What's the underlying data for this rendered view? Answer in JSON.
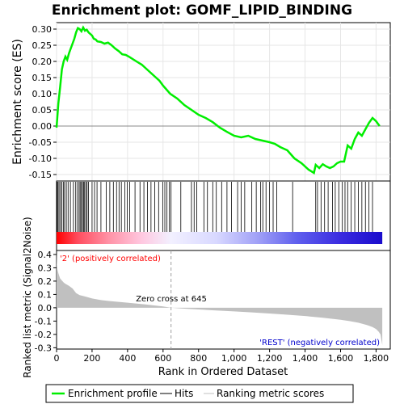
{
  "title": "Enrichment plot: GOMF_LIPID_BINDING",
  "colors": {
    "es_line": "#00ee00",
    "hit_line": "#000000",
    "metric_fill": "#c0c0c0",
    "zero_cross_line": "#a0a0a0",
    "pos_label": "#ff0000",
    "neg_label": "#0000cc"
  },
  "legend": {
    "items": [
      {
        "label": "Enrichment profile",
        "color": "#00ee00",
        "kind": "thick-line"
      },
      {
        "label": "Hits",
        "color": "#000000",
        "kind": "line"
      },
      {
        "label": "Ranking metric scores",
        "color": "#c0c0c0",
        "kind": "line"
      }
    ]
  },
  "chart_data": [
    {
      "type": "line",
      "name": "enrichment-profile",
      "ylabel": "Enrichment score (ES)",
      "xlim": [
        0,
        1880
      ],
      "ylim": [
        -0.17,
        0.32
      ],
      "yticks": [
        -0.15,
        -0.1,
        -0.05,
        0.0,
        0.05,
        0.1,
        0.15,
        0.2,
        0.25,
        0.3
      ],
      "ytick_labels": [
        "-0.15",
        "-0.10",
        "-0.05",
        "0.00",
        "0.05",
        "0.10",
        "0.15",
        "0.20",
        "0.25",
        "0.30"
      ],
      "grid": true,
      "x": [
        0,
        10,
        20,
        30,
        40,
        50,
        60,
        70,
        80,
        100,
        110,
        120,
        130,
        140,
        150,
        160,
        170,
        180,
        200,
        210,
        220,
        230,
        250,
        270,
        290,
        310,
        330,
        350,
        370,
        390,
        410,
        450,
        480,
        500,
        520,
        540,
        560,
        580,
        600,
        640,
        680,
        720,
        760,
        800,
        840,
        880,
        920,
        960,
        1000,
        1040,
        1080,
        1120,
        1160,
        1200,
        1230,
        1260,
        1300,
        1340,
        1380,
        1420,
        1450,
        1460,
        1480,
        1500,
        1520,
        1540,
        1560,
        1580,
        1600,
        1620,
        1640,
        1660,
        1680,
        1700,
        1720,
        1740,
        1760,
        1780,
        1800,
        1820
      ],
      "values": [
        -0.005,
        0.07,
        0.12,
        0.175,
        0.2,
        0.215,
        0.205,
        0.225,
        0.24,
        0.27,
        0.29,
        0.303,
        0.3,
        0.293,
        0.305,
        0.295,
        0.298,
        0.29,
        0.28,
        0.27,
        0.268,
        0.262,
        0.26,
        0.255,
        0.258,
        0.25,
        0.24,
        0.232,
        0.222,
        0.22,
        0.214,
        0.2,
        0.19,
        0.18,
        0.17,
        0.16,
        0.15,
        0.14,
        0.125,
        0.1,
        0.085,
        0.065,
        0.05,
        0.035,
        0.025,
        0.012,
        -0.005,
        -0.018,
        -0.03,
        -0.035,
        -0.03,
        -0.04,
        -0.045,
        -0.05,
        -0.055,
        -0.065,
        -0.075,
        -0.1,
        -0.115,
        -0.135,
        -0.145,
        -0.12,
        -0.13,
        -0.118,
        -0.125,
        -0.13,
        -0.125,
        -0.115,
        -0.11,
        -0.11,
        -0.06,
        -0.07,
        -0.04,
        -0.02,
        -0.03,
        -0.01,
        0.01,
        0.025,
        0.015,
        0.0
      ]
    },
    {
      "type": "scatter",
      "name": "hits",
      "x": [
        3,
        8,
        14,
        22,
        29,
        38,
        45,
        55,
        65,
        78,
        95,
        108,
        118,
        127,
        133,
        140,
        146,
        152,
        158,
        165,
        172,
        180,
        200,
        214,
        228,
        250,
        280,
        300,
        320,
        338,
        352,
        365,
        385,
        398,
        412,
        442,
        470,
        492,
        512,
        532,
        553,
        575,
        598,
        610,
        622,
        636,
        645,
        700,
        760,
        775,
        790,
        830,
        850,
        880,
        900,
        930,
        960,
        985,
        1020,
        1040,
        1060,
        1100,
        1125,
        1150,
        1162,
        1180,
        1200,
        1220,
        1240,
        1330,
        1460,
        1470,
        1490,
        1510,
        1530,
        1555,
        1570,
        1590,
        1610,
        1625,
        1640,
        1660,
        1680,
        1700,
        1720,
        1740,
        1760,
        1780
      ]
    },
    {
      "type": "area",
      "name": "ranked-list-metric",
      "xlabel": "Rank in Ordered Dataset",
      "ylabel": "Ranked list metric (Signal2Noise)",
      "xlim": [
        0,
        1880
      ],
      "ylim": [
        -0.31,
        0.43
      ],
      "xticks": [
        0,
        200,
        400,
        600,
        800,
        1000,
        1200,
        1400,
        1600,
        1800
      ],
      "xtick_labels": [
        "0",
        "200",
        "400",
        "600",
        "800",
        "1,000",
        "1,200",
        "1,400",
        "1,600",
        "1,800"
      ],
      "yticks": [
        -0.3,
        -0.2,
        -0.1,
        0.0,
        0.1,
        0.2,
        0.3,
        0.4
      ],
      "ytick_labels": [
        "-0.3",
        "-0.2",
        "-0.1",
        "0.0",
        "0.1",
        "0.2",
        "0.3",
        "0.4"
      ],
      "grid": false,
      "x": [
        0,
        2,
        5,
        10,
        15,
        20,
        30,
        40,
        50,
        70,
        90,
        110,
        130,
        160,
        200,
        250,
        300,
        400,
        500,
        600,
        645,
        700,
        800,
        900,
        1000,
        1100,
        1200,
        1300,
        1400,
        1500,
        1600,
        1650,
        1700,
        1750,
        1780,
        1800,
        1815,
        1825,
        1830,
        1835
      ],
      "values": [
        0.43,
        0.33,
        0.29,
        0.26,
        0.24,
        0.22,
        0.205,
        0.19,
        0.18,
        0.165,
        0.145,
        0.11,
        0.095,
        0.085,
        0.07,
        0.058,
        0.05,
        0.038,
        0.025,
        0.01,
        0.0,
        -0.005,
        -0.013,
        -0.02,
        -0.027,
        -0.035,
        -0.043,
        -0.052,
        -0.062,
        -0.075,
        -0.09,
        -0.1,
        -0.112,
        -0.13,
        -0.145,
        -0.16,
        -0.18,
        -0.2,
        -0.24,
        -0.28
      ]
    }
  ],
  "annotations": {
    "positive_label": "'2' (positively correlated)",
    "negative_label": "'REST' (negatively correlated)",
    "zero_cross_label": "Zero cross at 645",
    "zero_cross_rank": 645
  },
  "heat_bar": {
    "total_ranks": 1835,
    "stops": [
      {
        "rank": 0,
        "color": "#ff0000"
      },
      {
        "rank": 120,
        "color": "#ff4d5f"
      },
      {
        "rank": 300,
        "color": "#ff94a8"
      },
      {
        "rank": 480,
        "color": "#ffc8e0"
      },
      {
        "rank": 645,
        "color": "#f2f0ff"
      },
      {
        "rank": 900,
        "color": "#d8d8ff"
      },
      {
        "rank": 1150,
        "color": "#9c9cf6"
      },
      {
        "rank": 1350,
        "color": "#6060ee"
      },
      {
        "rank": 1600,
        "color": "#3a2be0"
      },
      {
        "rank": 1835,
        "color": "#1a0ccc"
      }
    ]
  }
}
